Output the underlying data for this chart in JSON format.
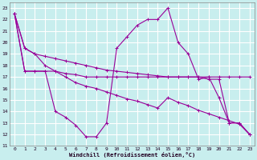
{
  "xlabel": "Windchill (Refroidissement éolien,°C)",
  "xlim": [
    -0.5,
    23.5
  ],
  "ylim": [
    11,
    23.5
  ],
  "yticks": [
    11,
    12,
    13,
    14,
    15,
    16,
    17,
    18,
    19,
    20,
    21,
    22,
    23
  ],
  "xticks": [
    0,
    1,
    2,
    3,
    4,
    5,
    6,
    7,
    8,
    9,
    10,
    11,
    12,
    13,
    14,
    15,
    16,
    17,
    18,
    19,
    20,
    21,
    22,
    23
  ],
  "bg_color": "#c8eeee",
  "grid_color": "#ffffff",
  "line_color": "#990099",
  "lines": [
    {
      "x": [
        0,
        1,
        2,
        3,
        4,
        5,
        6,
        7,
        8,
        9,
        10,
        11,
        12,
        13,
        14,
        15,
        16,
        17,
        18,
        19,
        20,
        21,
        22,
        23
      ],
      "y": [
        22.5,
        19.5,
        19.0,
        18.8,
        18.6,
        18.4,
        18.2,
        18.0,
        17.8,
        17.6,
        17.5,
        17.4,
        17.3,
        17.2,
        17.1,
        17.0,
        17.0,
        17.0,
        17.0,
        17.0,
        17.0,
        17.0,
        17.0,
        17.0
      ]
    },
    {
      "x": [
        0,
        1,
        2,
        3,
        4,
        5,
        6,
        7,
        8,
        9,
        10,
        11,
        12,
        13,
        14,
        15,
        16,
        17,
        18,
        19,
        20,
        21,
        22,
        23
      ],
      "y": [
        22.5,
        17.5,
        17.5,
        17.5,
        14.0,
        13.5,
        12.8,
        11.8,
        11.8,
        13.0,
        19.5,
        20.5,
        21.5,
        22.0,
        22.0,
        23.0,
        20.0,
        19.0,
        16.8,
        17.0,
        15.2,
        13.0,
        13.0,
        12.0
      ]
    },
    {
      "x": [
        0,
        1,
        2,
        3,
        4,
        5,
        6,
        7,
        8,
        9,
        10,
        11,
        12,
        13,
        14,
        15,
        16,
        17,
        18,
        19,
        20,
        21,
        22,
        23
      ],
      "y": [
        22.5,
        17.5,
        17.5,
        17.5,
        17.5,
        17.3,
        17.2,
        17.0,
        17.0,
        17.0,
        17.0,
        17.0,
        17.0,
        17.0,
        17.0,
        17.0,
        17.0,
        17.0,
        17.0,
        16.8,
        16.8,
        13.0,
        13.0,
        12.0
      ]
    },
    {
      "x": [
        0,
        1,
        2,
        3,
        4,
        5,
        6,
        7,
        8,
        9,
        10,
        11,
        12,
        13,
        14,
        15,
        16,
        17,
        18,
        19,
        20,
        21,
        22,
        23
      ],
      "y": [
        22.5,
        19.5,
        19.0,
        18.0,
        17.5,
        17.0,
        16.5,
        16.2,
        16.0,
        15.7,
        15.4,
        15.1,
        14.9,
        14.6,
        14.3,
        15.2,
        14.8,
        14.5,
        14.1,
        13.8,
        13.5,
        13.2,
        12.9,
        12.0
      ]
    }
  ]
}
